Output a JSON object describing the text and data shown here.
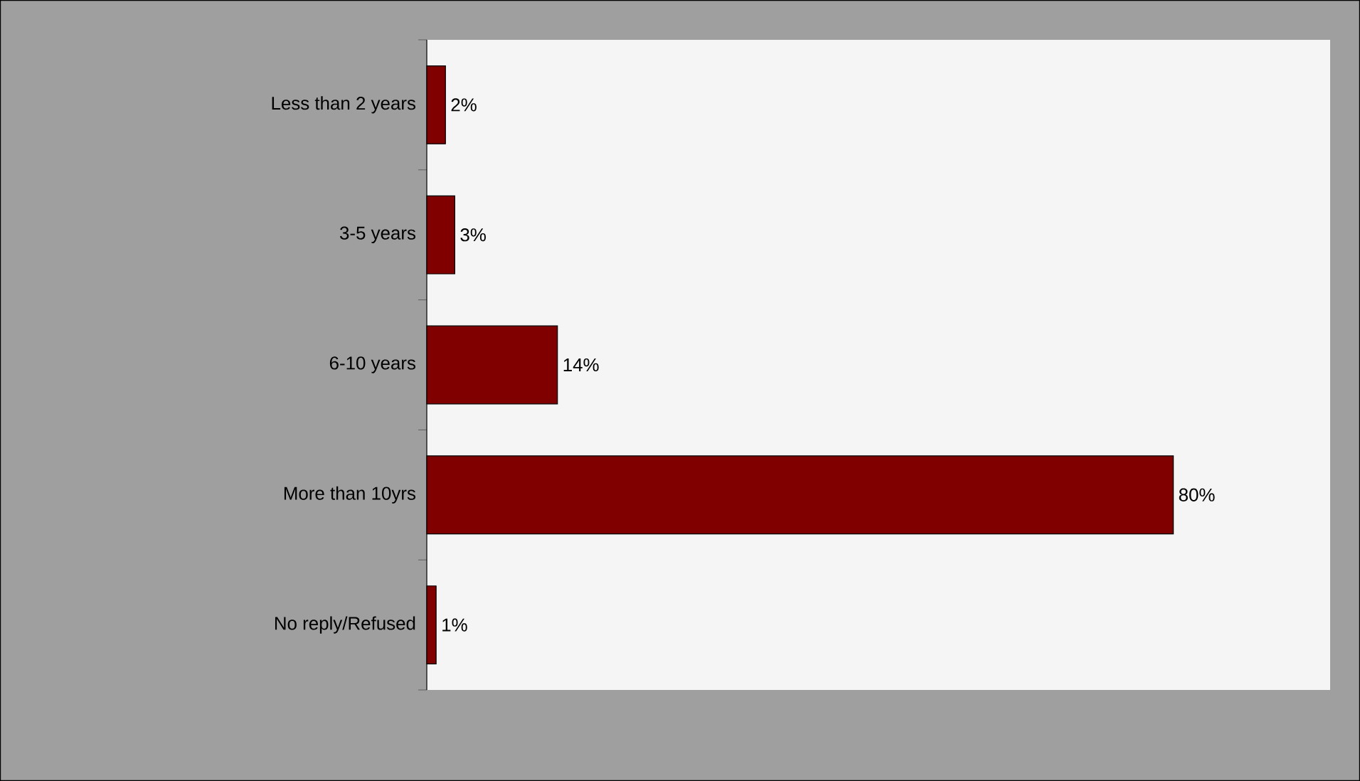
{
  "chart_data": {
    "type": "bar",
    "orientation": "horizontal",
    "categories": [
      "Less than 2 years",
      "3-5 years",
      "6-10 years",
      "More than 10yrs",
      "No reply/Refused"
    ],
    "values": [
      2,
      3,
      14,
      80,
      1
    ],
    "value_labels": [
      "2%",
      "3%",
      "14%",
      "80%",
      "1%"
    ],
    "color": "#800000"
  }
}
